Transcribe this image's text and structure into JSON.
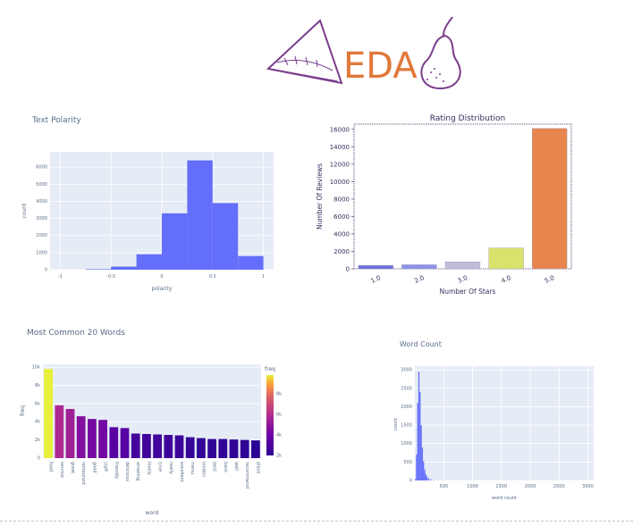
{
  "banner": {
    "text": "EDA"
  },
  "charts": [
    {
      "title": "Text Polarity",
      "type": "bar",
      "x": [
        -0.625,
        -0.375,
        -0.125,
        0.125,
        0.375,
        0.625,
        0.875
      ],
      "values": [
        30,
        180,
        900,
        3300,
        6400,
        3900,
        800
      ],
      "xlabel": "polarity",
      "ylabel": "count",
      "xticks": [
        "-1",
        "-0.5",
        "0",
        "0.5",
        "1"
      ],
      "yticks": [
        "0",
        "1000",
        "2000",
        "3000",
        "4000",
        "5000",
        "6000"
      ],
      "ylim": [
        0,
        6900
      ],
      "color": "#636efa"
    },
    {
      "title": "Rating Distribution",
      "type": "bar",
      "categories": [
        "1.0",
        "2.0",
        "3.0",
        "4.0",
        "5.0"
      ],
      "values": [
        400,
        470,
        800,
        2400,
        16100
      ],
      "xlabel": "Number Of Stars",
      "ylabel": "Number Of Reviews",
      "yticks": [
        "0",
        "2000",
        "4000",
        "6000",
        "8000",
        "10000",
        "12000",
        "14000",
        "16000"
      ],
      "ylim": [
        0,
        16600
      ],
      "colors": [
        "#6f6fe0",
        "#8b93e8",
        "#c0bcd8",
        "#d9e26a",
        "#e8844e"
      ]
    },
    {
      "title": "Most Common 20 Words",
      "type": "bar",
      "categories": [
        "food",
        "service",
        "great",
        "restaurant",
        "good",
        "staff",
        "friendly",
        "delicious",
        "amazing",
        "lovely",
        "time",
        "really",
        "excellent",
        "menu",
        "london",
        "best",
        "back",
        "well",
        "recommend",
        "place"
      ],
      "values": [
        9800,
        5800,
        5400,
        4600,
        4300,
        4200,
        3400,
        3300,
        2700,
        2650,
        2600,
        2550,
        2500,
        2300,
        2200,
        2100,
        2100,
        2050,
        2000,
        1950
      ],
      "xlabel": "word",
      "ylabel": "freq",
      "yticks": [
        "0",
        "2k",
        "4k",
        "6k",
        "8k",
        "10k"
      ],
      "ylim": [
        0,
        10300
      ],
      "colorbar": {
        "title": "freq",
        "ticks": [
          "2k",
          "4k",
          "6k",
          "8k"
        ]
      }
    },
    {
      "title": "Word Count",
      "type": "bar",
      "x": [
        10,
        30,
        50,
        70,
        90,
        110,
        130,
        150,
        170,
        190,
        210,
        240,
        280,
        330,
        400
      ],
      "values": [
        40,
        700,
        2100,
        2950,
        2400,
        1500,
        900,
        520,
        300,
        170,
        100,
        60,
        30,
        15,
        5
      ],
      "xlabel": "word count",
      "ylabel": "count",
      "xticks": [
        "500",
        "1000",
        "1500",
        "2000",
        "2500",
        "3000"
      ],
      "yticks": [
        "0",
        "500",
        "1000",
        "1500",
        "2000",
        "2500",
        "3000"
      ],
      "ylim": [
        0,
        3100
      ],
      "color": "#636efa"
    }
  ]
}
